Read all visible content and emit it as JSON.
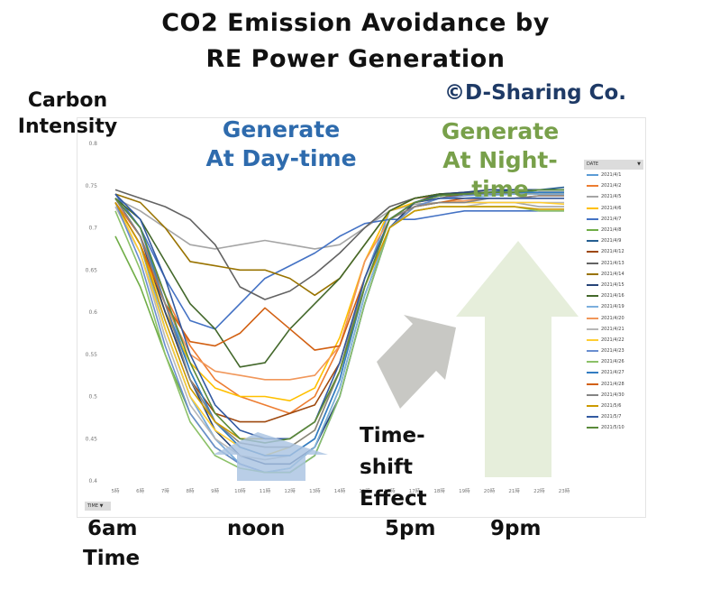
{
  "title_line1": "CO2 Emission Avoidance by",
  "title_line2": "RE Power Generation",
  "copyright": "©D-Sharing Co.",
  "ylabel_line1": "Carbon",
  "ylabel_line2": "Intensity",
  "annotations": {
    "day_line1": "Generate",
    "day_line2": "At Day-time",
    "night_line1": "Generate",
    "night_line2": "At Night-time",
    "shift_line1": "Time-",
    "shift_line2": "shift",
    "shift_line3": "Effect"
  },
  "bottom_labels": {
    "six": "6am",
    "noon": "noon",
    "five": "5pm",
    "nine": "9pm",
    "time": "Time"
  },
  "colors": {
    "day": "#2e6bad",
    "night": "#78a04a",
    "arrow_green": "#e6eedb",
    "arrow_gray": "#c8c8c4",
    "arrow_blue": "#a9c3e2"
  },
  "chart_data": {
    "type": "line",
    "title": "CO2 Emission Avoidance by RE Power Generation",
    "xlabel": "Time",
    "ylabel": "Carbon Intensity",
    "ylim": [
      0.4,
      0.8
    ],
    "yticks": [
      "0.8",
      "0.75",
      "0.7",
      "0.65",
      "0.6",
      "0.55",
      "0.5",
      "0.45",
      "0.4"
    ],
    "ytick_values": [
      0.8,
      0.75,
      0.7,
      0.65,
      0.6,
      0.55,
      0.5,
      0.45,
      0.4
    ],
    "categories": [
      "5時",
      "6時",
      "7時",
      "8時",
      "9時",
      "10時",
      "11時",
      "12時",
      "13時",
      "14時",
      "15時",
      "16時",
      "17時",
      "18時",
      "19時",
      "20時",
      "21時",
      "22時",
      "23時"
    ],
    "legend_title": "DATE",
    "filter_button": "TIME",
    "series": [
      {
        "name": "2021/4/1",
        "color": "#5b9bd5",
        "values": [
          0.735,
          0.7,
          0.62,
          0.53,
          0.47,
          0.44,
          0.43,
          0.43,
          0.45,
          0.52,
          0.64,
          0.72,
          0.735,
          0.74,
          0.74,
          0.742,
          0.742,
          0.745,
          0.745
        ]
      },
      {
        "name": "2021/4/2",
        "color": "#ed7d31",
        "values": [
          0.73,
          0.69,
          0.62,
          0.56,
          0.52,
          0.5,
          0.49,
          0.48,
          0.5,
          0.56,
          0.66,
          0.72,
          0.735,
          0.738,
          0.74,
          0.74,
          0.742,
          0.742,
          0.74
        ]
      },
      {
        "name": "2021/4/5",
        "color": "#a5a5a5",
        "values": [
          0.735,
          0.72,
          0.7,
          0.68,
          0.675,
          0.68,
          0.685,
          0.68,
          0.675,
          0.68,
          0.7,
          0.72,
          0.728,
          0.73,
          0.73,
          0.73,
          0.73,
          0.725,
          0.725
        ]
      },
      {
        "name": "2021/4/6",
        "color": "#ffc000",
        "values": [
          0.73,
          0.68,
          0.6,
          0.54,
          0.51,
          0.5,
          0.5,
          0.495,
          0.51,
          0.57,
          0.66,
          0.72,
          0.73,
          0.735,
          0.738,
          0.74,
          0.74,
          0.74,
          0.74
        ]
      },
      {
        "name": "2021/4/7",
        "color": "#4472c4",
        "values": [
          0.74,
          0.7,
          0.64,
          0.59,
          0.58,
          0.61,
          0.64,
          0.655,
          0.67,
          0.69,
          0.705,
          0.71,
          0.71,
          0.715,
          0.72,
          0.72,
          0.72,
          0.72,
          0.72
        ]
      },
      {
        "name": "2021/4/8",
        "color": "#70ad47",
        "values": [
          0.69,
          0.63,
          0.55,
          0.48,
          0.44,
          0.42,
          0.41,
          0.415,
          0.44,
          0.51,
          0.62,
          0.7,
          0.725,
          0.735,
          0.74,
          0.74,
          0.74,
          0.745,
          0.745
        ]
      },
      {
        "name": "2021/4/9",
        "color": "#255e91",
        "values": [
          0.73,
          0.68,
          0.58,
          0.5,
          0.45,
          0.42,
          0.41,
          0.41,
          0.43,
          0.5,
          0.61,
          0.7,
          0.73,
          0.738,
          0.74,
          0.742,
          0.745,
          0.745,
          0.748
        ]
      },
      {
        "name": "2021/4/12",
        "color": "#9e480e",
        "values": [
          0.735,
          0.69,
          0.6,
          0.52,
          0.48,
          0.47,
          0.47,
          0.48,
          0.49,
          0.54,
          0.64,
          0.71,
          0.73,
          0.735,
          0.74,
          0.74,
          0.74,
          0.742,
          0.742
        ]
      },
      {
        "name": "2021/4/13",
        "color": "#636363",
        "values": [
          0.745,
          0.735,
          0.725,
          0.71,
          0.68,
          0.63,
          0.615,
          0.625,
          0.645,
          0.67,
          0.7,
          0.725,
          0.735,
          0.74,
          0.742,
          0.742,
          0.742,
          0.74,
          0.74
        ]
      },
      {
        "name": "2021/4/14",
        "color": "#997300",
        "values": [
          0.74,
          0.73,
          0.7,
          0.66,
          0.655,
          0.65,
          0.65,
          0.64,
          0.62,
          0.64,
          0.68,
          0.72,
          0.735,
          0.74,
          0.74,
          0.74,
          0.74,
          0.742,
          0.742
        ]
      },
      {
        "name": "2021/4/15",
        "color": "#264478",
        "values": [
          0.735,
          0.69,
          0.6,
          0.52,
          0.46,
          0.43,
          0.42,
          0.42,
          0.44,
          0.5,
          0.61,
          0.7,
          0.73,
          0.74,
          0.742,
          0.745,
          0.745,
          0.745,
          0.745
        ]
      },
      {
        "name": "2021/4/16",
        "color": "#43682b",
        "values": [
          0.735,
          0.71,
          0.66,
          0.61,
          0.58,
          0.535,
          0.54,
          0.58,
          0.61,
          0.64,
          0.68,
          0.72,
          0.735,
          0.74,
          0.74,
          0.742,
          0.742,
          0.745,
          0.745
        ]
      },
      {
        "name": "2021/4/19",
        "color": "#7cafdd",
        "values": [
          0.73,
          0.68,
          0.58,
          0.5,
          0.45,
          0.42,
          0.41,
          0.415,
          0.44,
          0.51,
          0.62,
          0.7,
          0.725,
          0.735,
          0.735,
          0.738,
          0.74,
          0.74,
          0.74
        ]
      },
      {
        "name": "2021/4/20",
        "color": "#f1975a",
        "values": [
          0.73,
          0.68,
          0.61,
          0.55,
          0.53,
          0.525,
          0.52,
          0.52,
          0.525,
          0.56,
          0.66,
          0.71,
          0.725,
          0.73,
          0.732,
          0.735,
          0.735,
          0.735,
          0.735
        ]
      },
      {
        "name": "2021/4/21",
        "color": "#b7b7b7",
        "values": [
          0.725,
          0.67,
          0.57,
          0.49,
          0.45,
          0.43,
          0.425,
          0.43,
          0.45,
          0.52,
          0.63,
          0.7,
          0.72,
          0.725,
          0.725,
          0.73,
          0.73,
          0.73,
          0.73
        ]
      },
      {
        "name": "2021/4/22",
        "color": "#ffcd33",
        "values": [
          0.73,
          0.67,
          0.58,
          0.5,
          0.46,
          0.44,
          0.43,
          0.44,
          0.46,
          0.53,
          0.63,
          0.7,
          0.725,
          0.73,
          0.73,
          0.73,
          0.73,
          0.73,
          0.728
        ]
      },
      {
        "name": "2021/4/23",
        "color": "#698ed0",
        "values": [
          0.73,
          0.66,
          0.56,
          0.48,
          0.44,
          0.42,
          0.41,
          0.41,
          0.43,
          0.5,
          0.61,
          0.7,
          0.725,
          0.735,
          0.738,
          0.74,
          0.742,
          0.745,
          0.745
        ]
      },
      {
        "name": "2021/4/26",
        "color": "#8cc168",
        "values": [
          0.72,
          0.65,
          0.55,
          0.47,
          0.43,
          0.415,
          0.41,
          0.41,
          0.43,
          0.5,
          0.61,
          0.7,
          0.72,
          0.725,
          0.725,
          0.725,
          0.725,
          0.72,
          0.72
        ]
      },
      {
        "name": "2021/4/27",
        "color": "#327dc2",
        "values": [
          0.735,
          0.7,
          0.61,
          0.53,
          0.47,
          0.44,
          0.43,
          0.43,
          0.45,
          0.52,
          0.63,
          0.71,
          0.73,
          0.738,
          0.74,
          0.742,
          0.742,
          0.742,
          0.742
        ]
      },
      {
        "name": "2021/4/28",
        "color": "#d26012",
        "values": [
          0.73,
          0.68,
          0.61,
          0.565,
          0.56,
          0.575,
          0.605,
          0.58,
          0.555,
          0.56,
          0.64,
          0.71,
          0.725,
          0.73,
          0.735,
          0.735,
          0.735,
          0.738,
          0.738
        ]
      },
      {
        "name": "2021/4/30",
        "color": "#848484",
        "values": [
          0.735,
          0.69,
          0.61,
          0.52,
          0.47,
          0.445,
          0.44,
          0.44,
          0.46,
          0.53,
          0.64,
          0.71,
          0.725,
          0.73,
          0.73,
          0.735,
          0.735,
          0.738,
          0.738
        ]
      },
      {
        "name": "2021/5/6",
        "color": "#cc9a00",
        "values": [
          0.73,
          0.68,
          0.59,
          0.51,
          0.47,
          0.45,
          0.45,
          0.45,
          0.47,
          0.53,
          0.63,
          0.7,
          0.72,
          0.725,
          0.725,
          0.725,
          0.725,
          0.722,
          0.722
        ]
      },
      {
        "name": "2021/5/7",
        "color": "#335aa1",
        "values": [
          0.74,
          0.71,
          0.64,
          0.55,
          0.49,
          0.46,
          0.45,
          0.45,
          0.47,
          0.54,
          0.64,
          0.71,
          0.73,
          0.735,
          0.735,
          0.735,
          0.735,
          0.735,
          0.735
        ]
      },
      {
        "name": "2021/5/10",
        "color": "#5a8a3a",
        "values": [
          0.735,
          0.7,
          0.62,
          0.54,
          0.48,
          0.45,
          0.445,
          0.45,
          0.47,
          0.53,
          0.63,
          0.71,
          0.73,
          0.738,
          0.74,
          0.742,
          0.742,
          0.745,
          0.745
        ]
      }
    ]
  }
}
